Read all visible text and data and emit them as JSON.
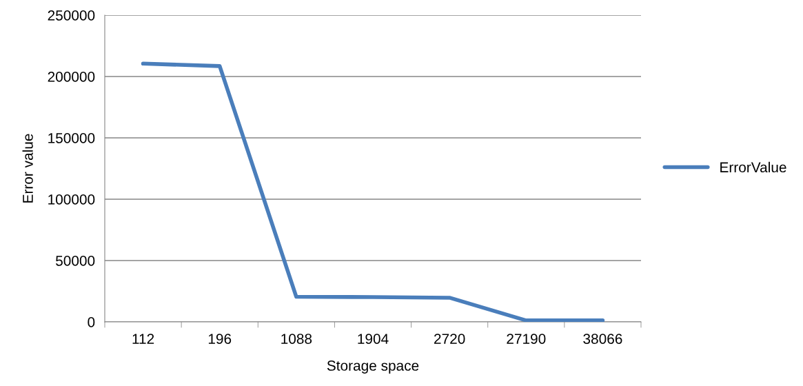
{
  "chart_data": {
    "type": "line",
    "xlabel": "Storage space",
    "ylabel": "Error value",
    "categories": [
      "112",
      "196",
      "1088",
      "1904",
      "2720",
      "27190",
      "38066"
    ],
    "series": [
      {
        "name": "ErrorValue",
        "color": "#4a7ebb",
        "values": [
          210500,
          208500,
          20500,
          20200,
          19700,
          1200,
          1200
        ]
      }
    ],
    "ylim": [
      0,
      250000
    ],
    "yticks": [
      0,
      50000,
      100000,
      150000,
      200000,
      250000
    ],
    "grid": "y",
    "legend": "right",
    "marker": "none",
    "line_style": "solid"
  }
}
